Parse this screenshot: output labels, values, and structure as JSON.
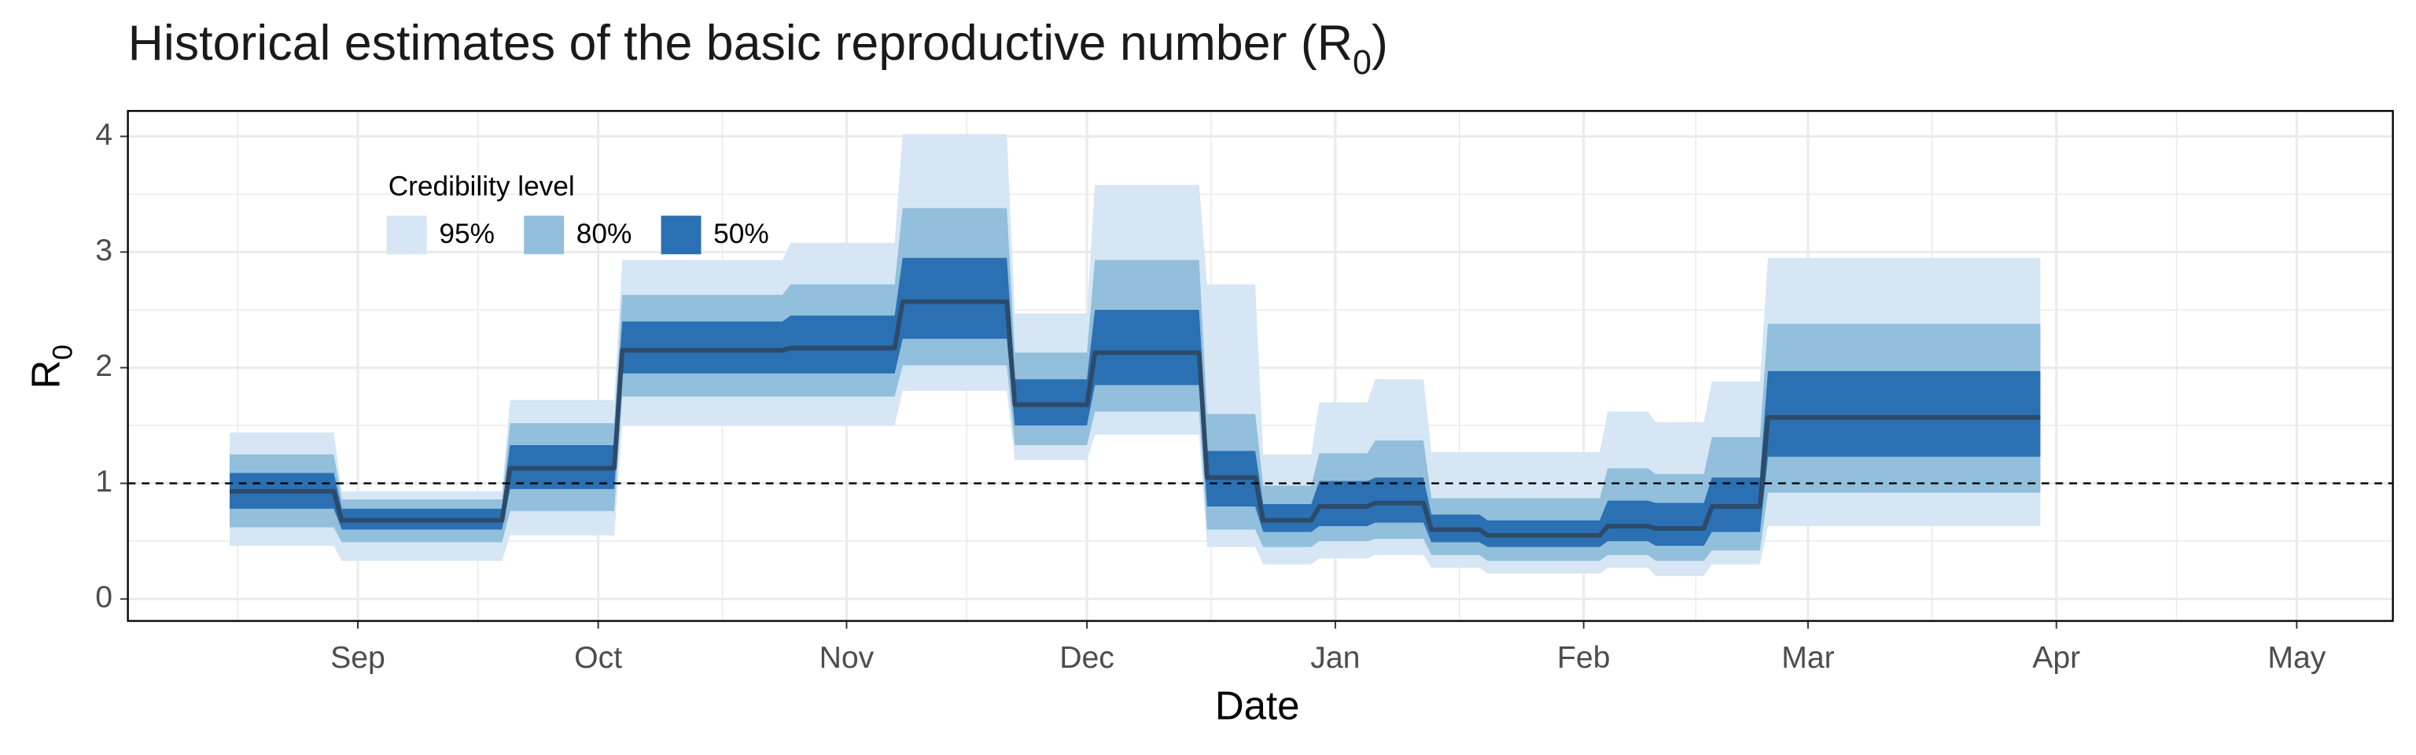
{
  "chart_data": {
    "type": "ribbon",
    "title": {
      "text": "Historical estimates of the basic reproductive number (R",
      "sub": "0",
      "end": ")"
    },
    "xlabel": "Date",
    "ylabel": {
      "text": "R",
      "sub": "0"
    },
    "legend_title": "Credibility level",
    "legend": "top-left",
    "grid": true,
    "hline": 1,
    "x": [
      -16,
      -3,
      -2,
      18,
      19,
      32,
      33,
      53,
      54,
      67,
      68,
      81,
      82,
      91,
      92,
      105,
      106,
      112,
      113,
      119,
      120,
      126,
      127,
      133,
      134,
      140,
      141,
      155,
      156,
      161,
      162,
      168,
      169,
      175,
      176,
      210
    ],
    "xlim": [
      -28.7,
      254
    ],
    "xticks": [
      {
        "value": 0,
        "label": "Sep"
      },
      {
        "value": 30,
        "label": "Oct"
      },
      {
        "value": 61,
        "label": "Nov"
      },
      {
        "value": 91,
        "label": "Dec"
      },
      {
        "value": 122,
        "label": "Jan"
      },
      {
        "value": 153,
        "label": "Feb"
      },
      {
        "value": 181,
        "label": "Mar"
      },
      {
        "value": 212,
        "label": "Apr"
      },
      {
        "value": 242,
        "label": "May"
      }
    ],
    "ylim": [
      -0.19,
      4.22
    ],
    "yticks": [
      0,
      1,
      2,
      3,
      4
    ],
    "bands": [
      {
        "name": "95%",
        "color": "#d6e6f4",
        "lower": [
          0.46,
          0.46,
          0.33,
          0.33,
          0.55,
          0.55,
          1.5,
          1.5,
          1.5,
          1.5,
          1.8,
          1.8,
          1.2,
          1.2,
          1.42,
          1.42,
          0.45,
          0.45,
          0.3,
          0.3,
          0.35,
          0.35,
          0.38,
          0.38,
          0.27,
          0.27,
          0.22,
          0.22,
          0.27,
          0.27,
          0.2,
          0.2,
          0.3,
          0.3,
          0.63,
          0.63
        ],
        "upper": [
          1.44,
          1.44,
          0.93,
          0.93,
          1.72,
          1.72,
          2.93,
          2.93,
          3.08,
          3.08,
          4.02,
          4.02,
          2.47,
          2.47,
          3.58,
          3.58,
          2.72,
          2.72,
          1.25,
          1.25,
          1.7,
          1.7,
          1.9,
          1.9,
          1.27,
          1.27,
          1.27,
          1.27,
          1.62,
          1.62,
          1.53,
          1.53,
          1.88,
          1.88,
          2.95,
          2.95
        ]
      },
      {
        "name": "80%",
        "color": "#92bfdb",
        "lower": [
          0.62,
          0.62,
          0.49,
          0.49,
          0.76,
          0.76,
          1.75,
          1.75,
          1.75,
          1.75,
          2.02,
          2.02,
          1.33,
          1.33,
          1.62,
          1.62,
          0.6,
          0.6,
          0.45,
          0.45,
          0.5,
          0.5,
          0.52,
          0.52,
          0.38,
          0.38,
          0.33,
          0.33,
          0.38,
          0.38,
          0.33,
          0.33,
          0.42,
          0.42,
          0.92,
          0.92
        ],
        "upper": [
          1.25,
          1.25,
          0.86,
          0.86,
          1.52,
          1.52,
          2.63,
          2.63,
          2.72,
          2.72,
          3.38,
          3.38,
          2.13,
          2.13,
          2.93,
          2.93,
          1.6,
          1.6,
          0.98,
          0.98,
          1.26,
          1.26,
          1.37,
          1.37,
          0.87,
          0.87,
          0.87,
          0.87,
          1.13,
          1.13,
          1.08,
          1.08,
          1.4,
          1.4,
          2.38,
          2.38
        ]
      },
      {
        "name": "50%",
        "color": "#2b70b3",
        "lower": [
          0.78,
          0.78,
          0.6,
          0.6,
          0.95,
          0.95,
          1.95,
          1.95,
          1.95,
          1.95,
          2.25,
          2.25,
          1.5,
          1.5,
          1.85,
          1.85,
          0.8,
          0.8,
          0.58,
          0.58,
          0.63,
          0.63,
          0.66,
          0.66,
          0.49,
          0.49,
          0.45,
          0.45,
          0.5,
          0.5,
          0.46,
          0.46,
          0.58,
          0.58,
          1.23,
          1.23
        ],
        "upper": [
          1.09,
          1.09,
          0.78,
          0.78,
          1.33,
          1.33,
          2.4,
          2.4,
          2.45,
          2.45,
          2.95,
          2.95,
          1.9,
          1.9,
          2.5,
          2.5,
          1.28,
          1.28,
          0.82,
          0.82,
          1.02,
          1.02,
          1.05,
          1.05,
          0.73,
          0.73,
          0.68,
          0.68,
          0.85,
          0.85,
          0.83,
          0.83,
          1.05,
          1.05,
          1.97,
          1.97
        ]
      }
    ],
    "median": {
      "color": "#2d4a6a",
      "values": [
        0.93,
        0.93,
        0.68,
        0.68,
        1.13,
        1.13,
        2.15,
        2.15,
        2.17,
        2.17,
        2.57,
        2.57,
        1.68,
        1.68,
        2.13,
        2.13,
        1.05,
        1.05,
        0.68,
        0.68,
        0.8,
        0.8,
        0.83,
        0.83,
        0.6,
        0.6,
        0.55,
        0.55,
        0.63,
        0.63,
        0.61,
        0.61,
        0.8,
        0.8,
        1.57,
        1.57
      ]
    }
  }
}
